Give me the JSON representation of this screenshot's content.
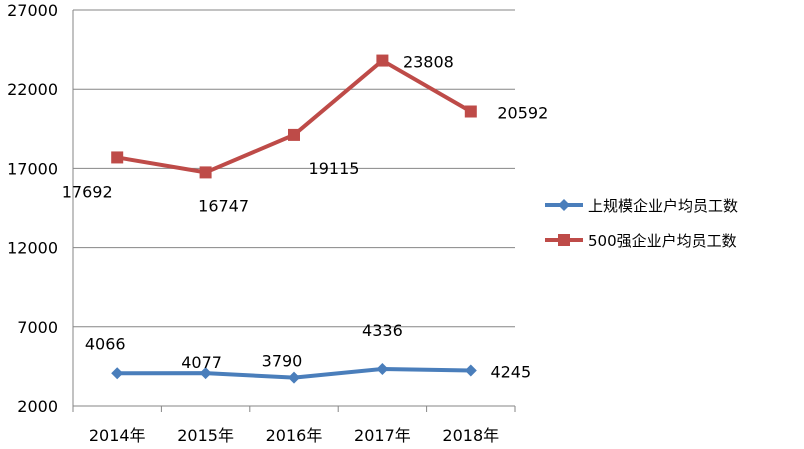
{
  "chart_data": {
    "type": "line",
    "categories": [
      "2014年",
      "2015年",
      "2016年",
      "2017年",
      "2018年"
    ],
    "yticks": [
      "2000",
      "7000",
      "12000",
      "17000",
      "22000",
      "27000"
    ],
    "ylim": [
      2000,
      27000
    ],
    "grid": true,
    "legend_position": "right",
    "series": [
      {
        "name": "上规模企业户均员工数",
        "values": [
          4066,
          4077,
          3790,
          4336,
          4245
        ],
        "labels": [
          "4066",
          "4077",
          "3790",
          "4336",
          "4245"
        ],
        "color": "#4a7ebb",
        "marker": "diamond"
      },
      {
        "name": "500强企业户均员工数",
        "values": [
          17692,
          16747,
          19115,
          23808,
          20592
        ],
        "labels": [
          "17692",
          "16747",
          "19115",
          "23808",
          "20592"
        ],
        "color": "#be4b48",
        "marker": "square"
      }
    ]
  }
}
